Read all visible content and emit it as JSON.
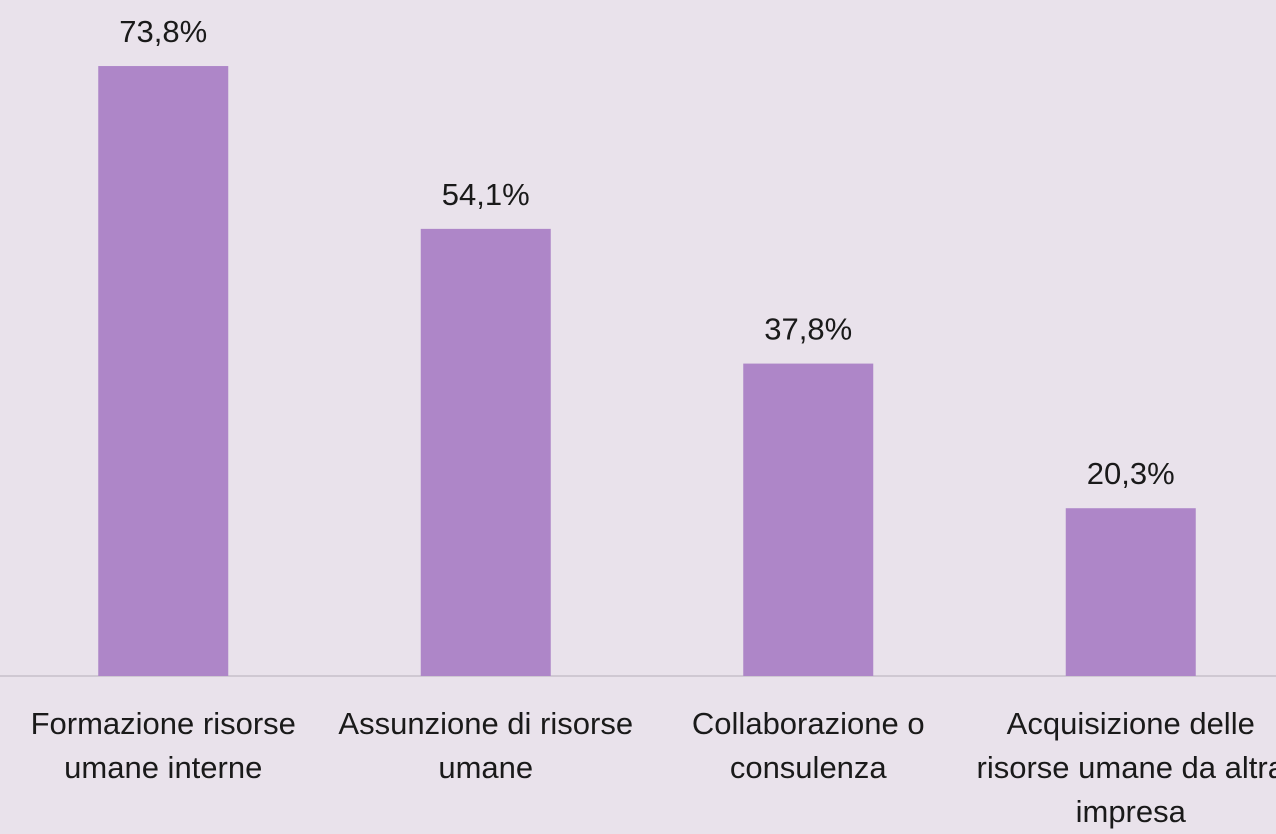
{
  "chart_data": {
    "type": "bar",
    "categories": [
      "Formazione risorse umane interne",
      "Assunzione di risorse umane",
      "Collaborazione o consulenza",
      "Acquisizione delle risorse umane da altra impresa"
    ],
    "values": [
      73.8,
      54.1,
      37.8,
      20.3
    ],
    "value_labels": [
      "73,8%",
      "54,1%",
      "37,8%",
      "20,3%"
    ],
    "color": "#ae86c8"
  }
}
